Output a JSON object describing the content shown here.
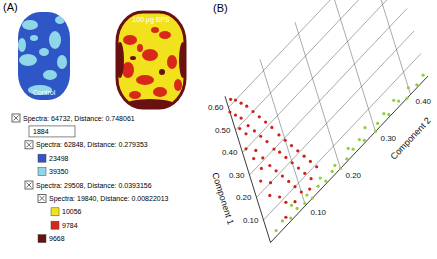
{
  "panel_a": {
    "label": "(A)",
    "images": [
      {
        "caption": "Control",
        "colors": [
          "#2f56c6",
          "#8fd6e8"
        ]
      },
      {
        "caption": "100 μg BPS",
        "colors": [
          "#f2e21e",
          "#d8281a",
          "#6a1010"
        ]
      }
    ],
    "tree": [
      {
        "depth": 0,
        "checkbox": true,
        "text": "Spectra: 64732, Distance: 0.748061"
      },
      {
        "depth": 1,
        "selected": true,
        "text": "1884"
      },
      {
        "depth": 1,
        "checkbox": true,
        "text": "Spectra: 62848, Distance: 0.279353"
      },
      {
        "depth": 2,
        "color": "#2f56c6",
        "text": "23498"
      },
      {
        "depth": 2,
        "color": "#8fd6e8",
        "text": "39350"
      },
      {
        "depth": 1,
        "checkbox": true,
        "text": "Spectra: 29508, Distance: 0.0393156"
      },
      {
        "depth": 2,
        "checkbox": true,
        "text": "Spectra: 19840, Distance: 0.00822013"
      },
      {
        "depth": 3,
        "color": "#f2e21e",
        "text": "10056"
      },
      {
        "depth": 3,
        "color": "#d8281a",
        "text": "9784"
      },
      {
        "depth": 2,
        "color": "#6a1010",
        "text": "9668"
      }
    ]
  },
  "panel_b": {
    "label": "(B)"
  },
  "chart_data": {
    "type": "scatter",
    "x_label": "Component 1",
    "y_label": "Component 2",
    "xlim": [
      0,
      0.65
    ],
    "ylim": [
      0,
      0.45
    ],
    "xticks": [
      {
        "value": 0.1,
        "label": "0.10"
      },
      {
        "value": 0.2,
        "label": "0.20"
      },
      {
        "value": 0.3,
        "label": "0.30"
      },
      {
        "value": 0.4,
        "label": "0.40"
      },
      {
        "value": 0.5,
        "label": "0.50"
      },
      {
        "value": 0.6,
        "label": "0.60"
      }
    ],
    "yticks": [
      {
        "value": 0.1,
        "label": "0.10"
      },
      {
        "value": 0.2,
        "label": "0.20"
      },
      {
        "value": 0.3,
        "label": "0.30"
      },
      {
        "value": 0.4,
        "label": "0.40"
      }
    ],
    "grid": true,
    "series": [
      {
        "color": "#d0201a",
        "x": [
          0.62,
          0.6,
          0.58,
          0.57,
          0.55,
          0.54,
          0.52,
          0.5,
          0.49,
          0.47,
          0.46,
          0.45,
          0.43,
          0.42,
          0.4,
          0.39,
          0.38,
          0.36,
          0.35,
          0.34,
          0.33,
          0.31,
          0.3,
          0.29,
          0.28,
          0.27,
          0.26,
          0.25,
          0.24,
          0.23,
          0.22,
          0.21,
          0.2,
          0.19,
          0.18,
          0.17,
          0.16,
          0.15,
          0.14,
          0.13,
          0.12,
          0.11,
          0.1,
          0.09,
          0.08,
          0.07,
          0.06,
          0.05,
          0.04,
          0.03
        ],
        "y": [
          0.01,
          0.02,
          0.0,
          0.03,
          0.01,
          0.04,
          0.02,
          0.05,
          0.01,
          0.03,
          0.06,
          0.02,
          0.04,
          0.07,
          0.01,
          0.05,
          0.08,
          0.03,
          0.06,
          0.02,
          0.09,
          0.04,
          0.07,
          0.1,
          0.03,
          0.08,
          0.05,
          0.11,
          0.02,
          0.09,
          0.06,
          0.12,
          0.04,
          0.1,
          0.07,
          0.13,
          0.03,
          0.11,
          0.08,
          0.14,
          0.05,
          0.12,
          0.09,
          0.15,
          0.06,
          0.13,
          0.1,
          0.08,
          0.12,
          0.05
        ]
      },
      {
        "color": "#8fd13a",
        "x": [
          0.02,
          0.01,
          0.03,
          0.0,
          0.02,
          0.04,
          0.01,
          0.03,
          0.02,
          0.0,
          0.05,
          0.01,
          0.03,
          0.02,
          0.04,
          0.01,
          0.0,
          0.03,
          0.02,
          0.01,
          0.04,
          0.02,
          0.0,
          0.03,
          0.01,
          0.02,
          0.05,
          0.01,
          0.03,
          0.02
        ],
        "y": [
          0.44,
          0.42,
          0.4,
          0.39,
          0.37,
          0.36,
          0.34,
          0.33,
          0.31,
          0.3,
          0.28,
          0.27,
          0.26,
          0.24,
          0.23,
          0.22,
          0.2,
          0.19,
          0.18,
          0.16,
          0.15,
          0.14,
          0.12,
          0.11,
          0.1,
          0.08,
          0.07,
          0.06,
          0.04,
          0.02
        ]
      }
    ]
  }
}
